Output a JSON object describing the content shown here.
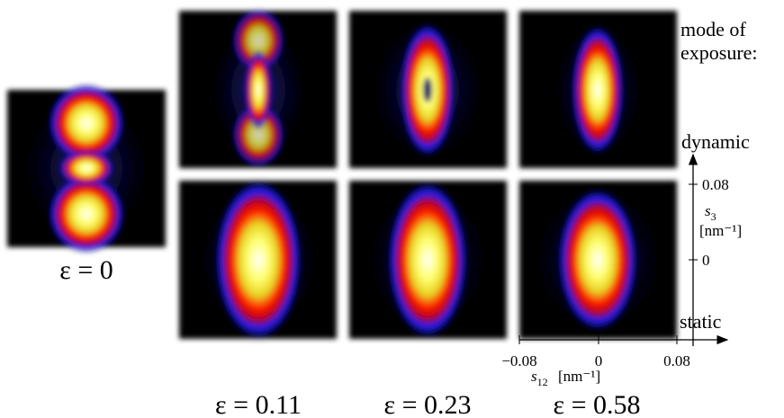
{
  "panels": [
    {
      "label": "ε = 0"
    },
    {
      "label": "ε = 0.11"
    },
    {
      "label": "ε = 0.23"
    },
    {
      "label": "ε = 0.58"
    }
  ],
  "mode": {
    "line1": "mode of",
    "line2": "exposure:",
    "dynamic": "dynamic",
    "static": "static"
  },
  "axes": {
    "s3": "s",
    "s3_sub": "3",
    "s3_unit": "[nm⁻¹]",
    "s3_ticks": [
      "0.08",
      "0"
    ],
    "s12": "s",
    "s12_sub": "12",
    "s12_unit": "[nm⁻¹]",
    "s12_ticks": [
      "−0.08",
      "0",
      "0.08"
    ]
  }
}
